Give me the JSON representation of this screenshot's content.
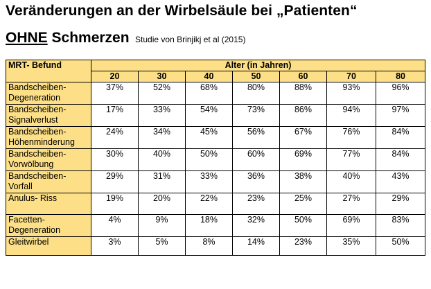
{
  "title": "Veränderungen an der Wirbelsäule bei „Patienten“",
  "subtitle": {
    "underlined": "OHNE",
    "rest": " Schmerzen",
    "citation": "Studie von Brinjikj et al (2015)"
  },
  "table": {
    "row_header": "MRT- Befund",
    "group_header": "Alter (in Jahren)",
    "ages": [
      "20",
      "30",
      "40",
      "50",
      "60",
      "70",
      "80"
    ],
    "rows": [
      {
        "label_line1": "Bandscheiben-",
        "label_line2": "Degeneration",
        "values": [
          "37%",
          "52%",
          "68%",
          "80%",
          "88%",
          "93%",
          "96%"
        ]
      },
      {
        "label_line1": "Bandscheiben-",
        "label_line2": "Signalverlust",
        "values": [
          "17%",
          "33%",
          "54%",
          "73%",
          "86%",
          "94%",
          "97%"
        ]
      },
      {
        "label_line1": "Bandscheiben-",
        "label_line2": "Höhenminderung",
        "values": [
          "24%",
          "34%",
          "45%",
          "56%",
          "67%",
          "76%",
          "84%"
        ]
      },
      {
        "label_line1": "Bandscheiben-",
        "label_line2": "Vorwölbung",
        "values": [
          "30%",
          "40%",
          "50%",
          "60%",
          "69%",
          "77%",
          "84%"
        ]
      },
      {
        "label_line1": "Bandscheiben-",
        "label_line2": "Vorfall",
        "values": [
          "29%",
          "31%",
          "33%",
          "36%",
          "38%",
          "40%",
          "43%"
        ]
      },
      {
        "label_line1": "Anulus- Riss",
        "label_line2": "",
        "values": [
          "19%",
          "20%",
          "22%",
          "23%",
          "25%",
          "27%",
          "29%"
        ]
      },
      {
        "label_line1": "Facetten-",
        "label_line2": "Degeneration",
        "values": [
          "4%",
          "9%",
          "18%",
          "32%",
          "50%",
          "69%",
          "83%"
        ]
      },
      {
        "label_line1": "Gleitwirbel",
        "label_line2": "",
        "values": [
          "3%",
          "5%",
          "8%",
          "14%",
          "23%",
          "35%",
          "50%"
        ]
      }
    ]
  },
  "colors": {
    "header_background": "#fcdf86",
    "border": "#000000"
  }
}
